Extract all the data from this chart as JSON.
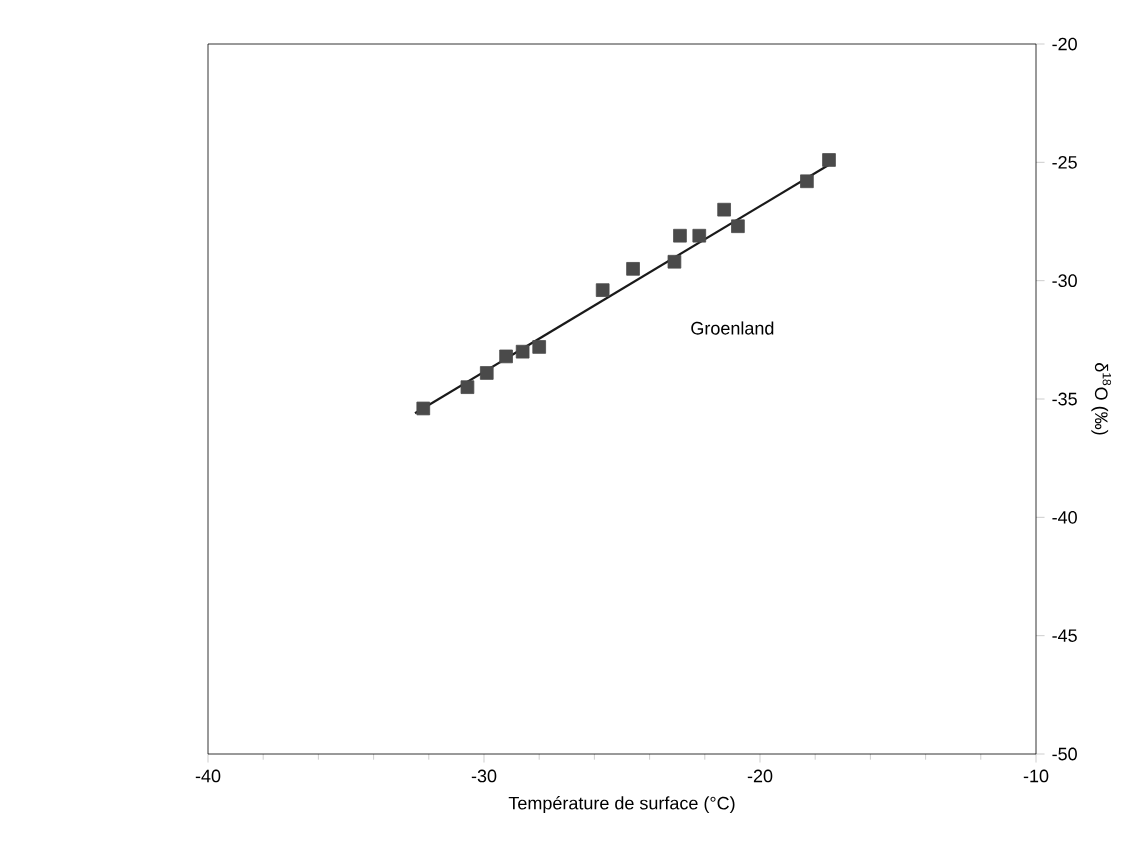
{
  "chart_data": {
    "type": "scatter",
    "xlabel": "Température de surface (°C)",
    "ylabel": "δ$^{18}$O (‰)",
    "x": [
      -32.2,
      -30.6,
      -29.9,
      -29.2,
      -28.6,
      -28.0,
      -25.7,
      -24.6,
      -23.1,
      -22.9,
      -22.2,
      -21.3,
      -20.8,
      -18.3,
      -17.5
    ],
    "series": [
      {
        "color": "#4a4a4a",
        "marker": "square",
        "values": [
          -35.4,
          -34.5,
          -33.9,
          -33.2,
          -33.0,
          -32.8,
          -30.4,
          -29.5,
          -29.2,
          -28.1,
          -28.1,
          -27.0,
          -27.7,
          -25.8,
          -24.9
        ]
      },
      {
        "type": "line",
        "color": "#1a1a1a",
        "x": [
          -32.5,
          -17.5
        ],
        "values": [
          -35.6,
          -25.1
        ]
      }
    ],
    "xlim": [
      -40,
      -10
    ],
    "ylim": [
      -50,
      -20
    ],
    "xticks": [
      -40,
      -30,
      -20,
      -10
    ],
    "yticks": [
      -50,
      -45,
      -40,
      -35,
      -30,
      -25,
      -20
    ],
    "annotations": [
      "Groenland"
    ]
  }
}
